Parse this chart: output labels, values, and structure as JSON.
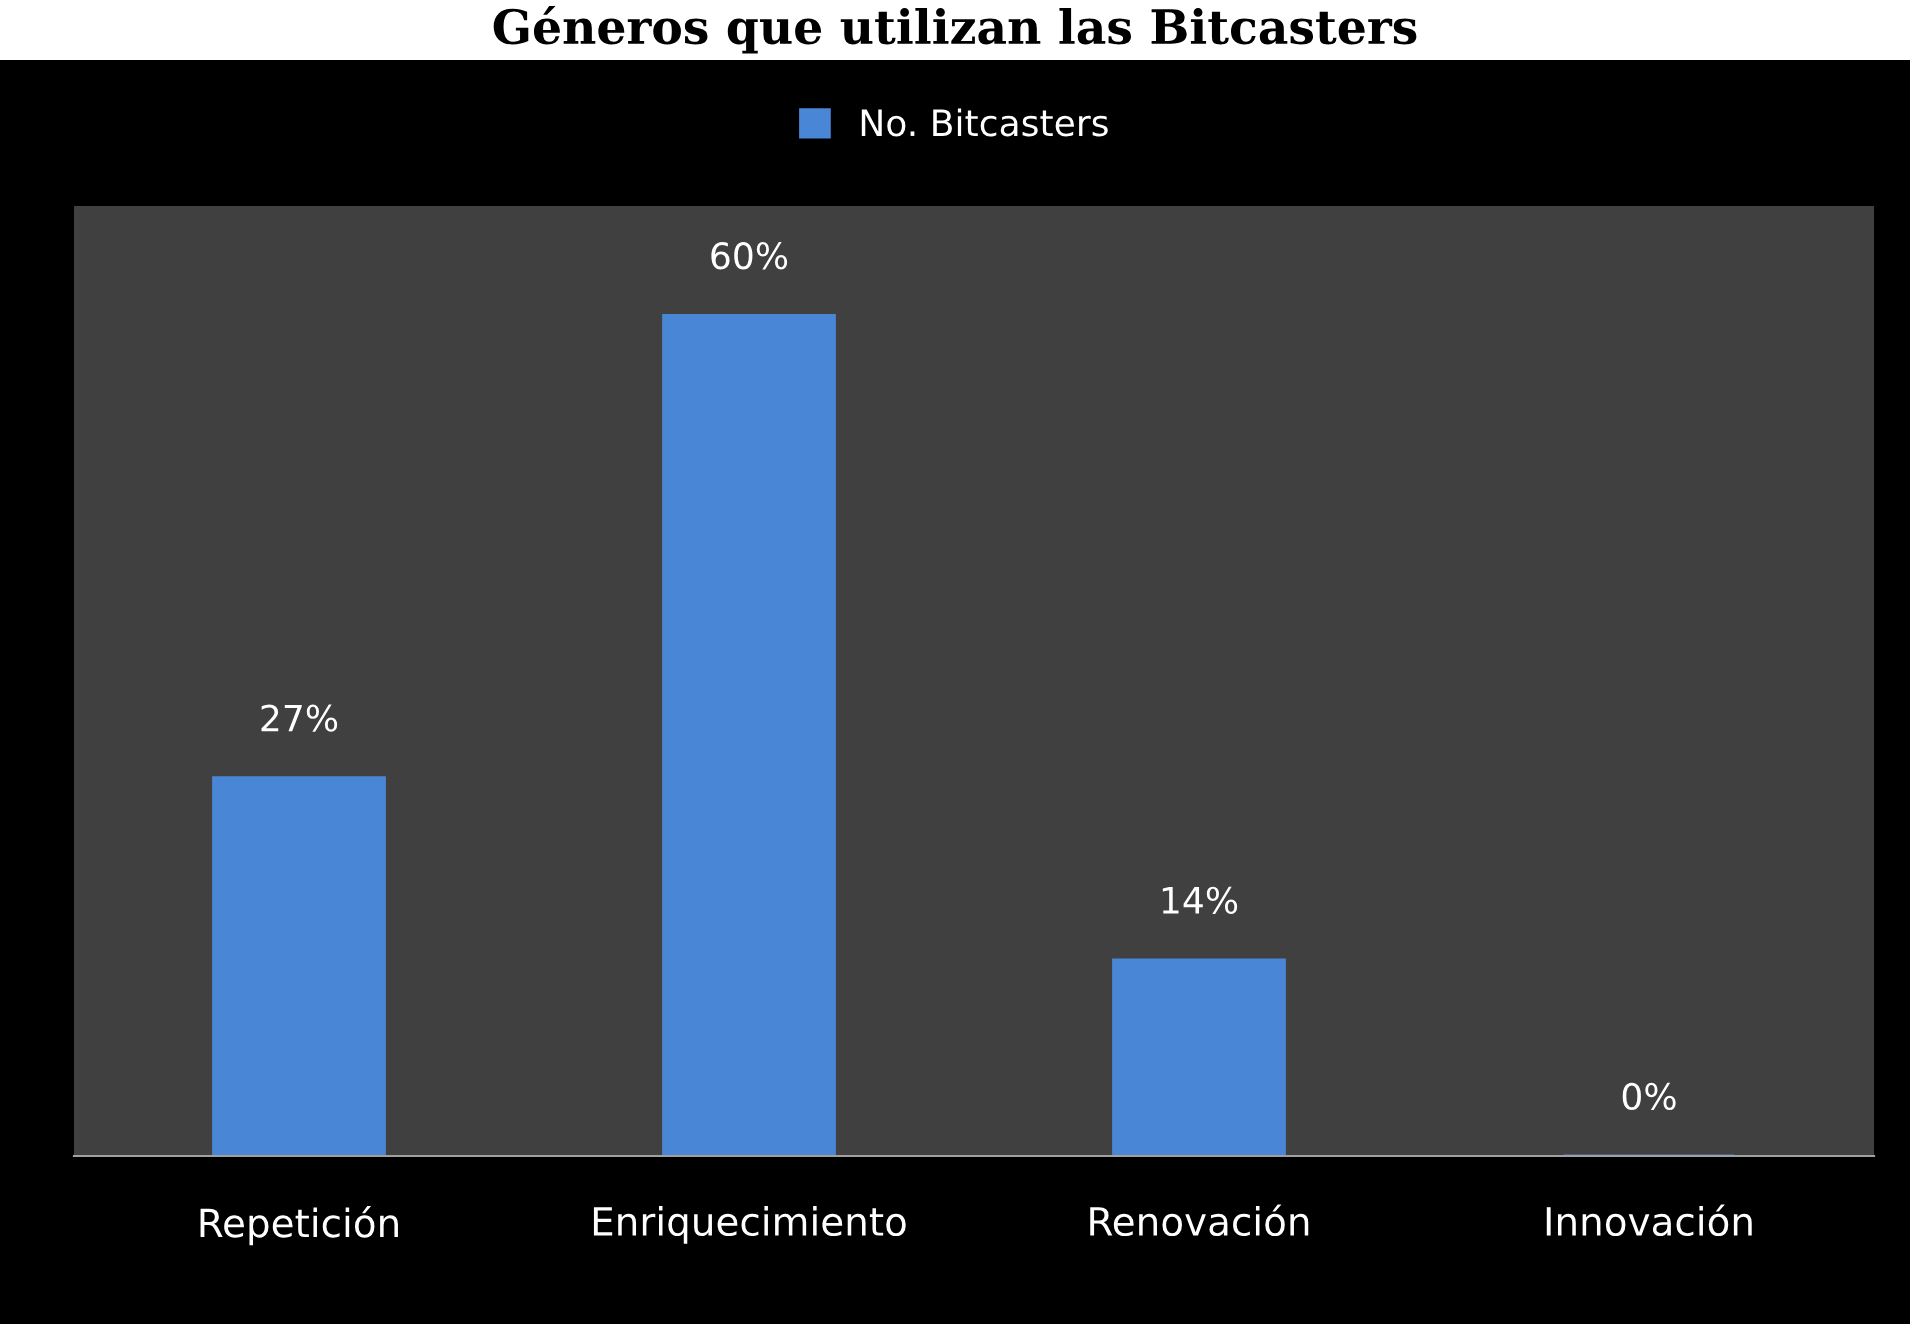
{
  "chart_data": {
    "type": "bar",
    "title": "Géneros que utilizan las Bitcasters",
    "categories": [
      "Repetición",
      "Enriquecimiento",
      "Renovación",
      "Innovación"
    ],
    "series": [
      {
        "name": "No. Bitcasters",
        "color": "#4a86d6",
        "values": [
          27,
          60,
          14,
          0
        ],
        "value_labels": [
          "27%",
          "60%",
          "14%",
          "0%"
        ]
      }
    ],
    "legend": "top",
    "grid": false,
    "tick_labels": "x"
  }
}
